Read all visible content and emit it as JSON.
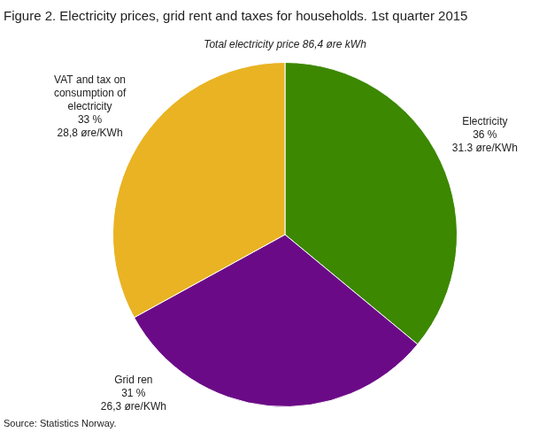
{
  "chart_data": {
    "type": "pie",
    "title": "Figure 2. Electricity prices, grid rent and taxes for households. 1st quarter 2015",
    "subtitle": "Total electricity price 86,4 øre kWh",
    "source": "Source: Statistics Norway.",
    "categories": [
      "Electricity",
      "Grid ren",
      "VAT and tax on consumption of electricity"
    ],
    "values": [
      36,
      31,
      33
    ],
    "value_labels": [
      "36 %",
      "31 %",
      "33 %"
    ],
    "price_labels": [
      "31.3 øre/KWh",
      "26,3 øre/KWh",
      "28,8 øre/KWh"
    ],
    "colors": [
      "#3c8800",
      "#6b0a87",
      "#e9b323"
    ],
    "data_labels": true
  }
}
